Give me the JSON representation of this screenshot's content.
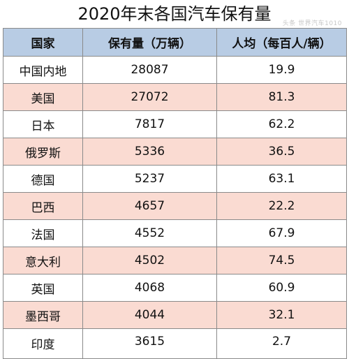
{
  "title": "2020年末各国汽车保有量",
  "watermark": "头条 世界汽车1010",
  "table": {
    "headers": [
      "国家",
      "保有量（万辆）",
      "人均（每百人/辆）"
    ],
    "rows": [
      [
        "中国内地",
        "28087",
        "19.9"
      ],
      [
        "美国",
        "27072",
        "81.3"
      ],
      [
        "日本",
        "7817",
        "62.2"
      ],
      [
        "俄罗斯",
        "5336",
        "36.5"
      ],
      [
        "德国",
        "5237",
        "63.1"
      ],
      [
        "巴西",
        "4657",
        "22.2"
      ],
      [
        "法国",
        "4552",
        "67.9"
      ],
      [
        "意大利",
        "4502",
        "74.5"
      ],
      [
        "英国",
        "4068",
        "60.9"
      ],
      [
        "墨西哥",
        "4044",
        "32.1"
      ],
      [
        "印度",
        "3615",
        "2.7"
      ]
    ]
  },
  "colors": {
    "header_bg": "#b8cce4",
    "row_even_bg": "#fadbd2",
    "row_odd_bg": "#ffffff",
    "border": "#8a8a8a"
  }
}
